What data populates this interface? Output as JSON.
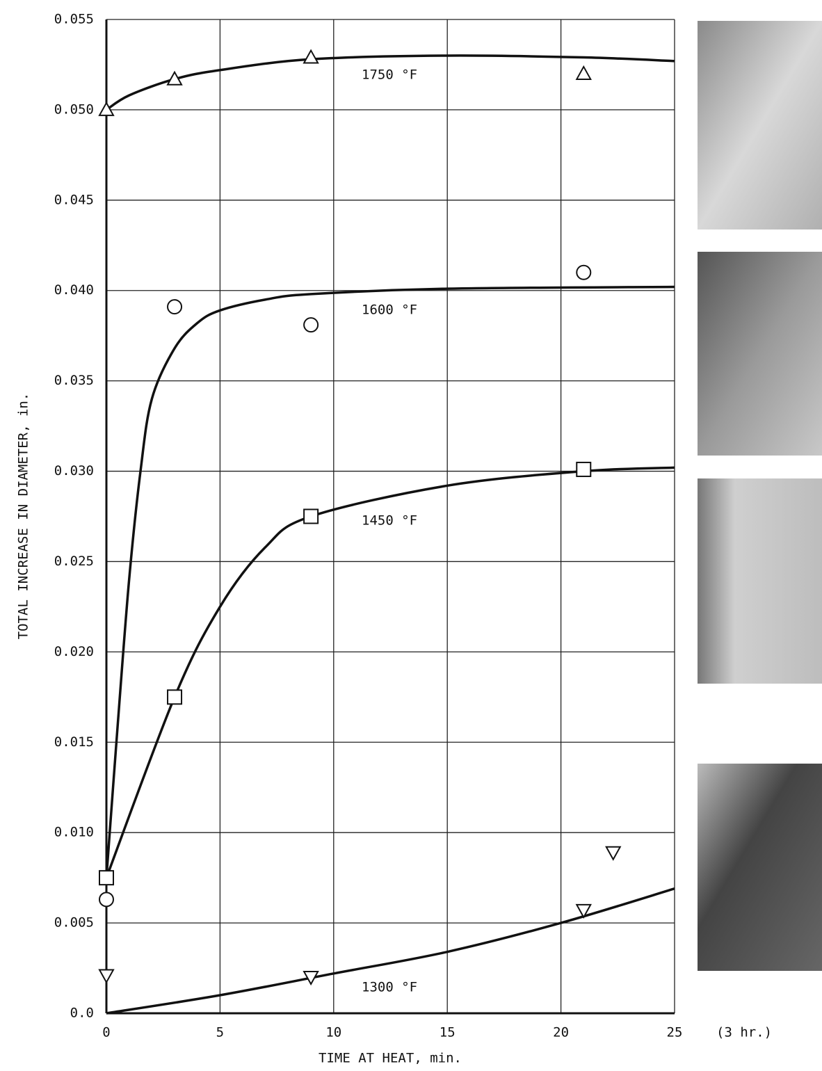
{
  "chart_data": {
    "type": "scatter",
    "x_label": "TIME AT HEAT, min.",
    "y_label": "TOTAL INCREASE IN DIAMETER, in.",
    "annotation": "(3 hr.)",
    "xlim": [
      0,
      25
    ],
    "xticks": [
      0,
      5,
      10,
      15,
      20,
      25
    ],
    "ylim": [
      0,
      0.055
    ],
    "yticks": [
      {
        "value": 0,
        "label": "0.0"
      },
      0.005,
      {
        "value": 0.01,
        "label": "0.010"
      },
      0.015,
      {
        "value": 0.02,
        "label": "0.020"
      },
      0.025,
      {
        "value": 0.03,
        "label": "0.030"
      },
      0.035,
      {
        "value": 0.04,
        "label": "0.040"
      },
      0.045,
      {
        "value": 0.05,
        "label": "0.050"
      },
      0.055
    ],
    "grid": true,
    "color": "#111111",
    "series": [
      {
        "name": "1750 °F",
        "marker": "triangle-up",
        "x": [
          0,
          3,
          9,
          21
        ],
        "values": [
          0.05,
          0.0517,
          0.0529,
          0.052
        ],
        "curve_x": [
          0,
          1,
          3,
          5,
          9,
          15,
          21,
          25
        ],
        "curve_values": [
          0.05,
          0.0508,
          0.0517,
          0.0522,
          0.0528,
          0.053,
          0.0529,
          0.0527
        ]
      },
      {
        "name": "1600 °F",
        "marker": "circle",
        "x": [
          0,
          3,
          9,
          21
        ],
        "values": [
          0.0063,
          0.0391,
          0.0381,
          0.041
        ],
        "curve_x": [
          0,
          0.5,
          1,
          1.5,
          2,
          3,
          4,
          5,
          7,
          9,
          15,
          25
        ],
        "curve_values": [
          0.0075,
          0.016,
          0.024,
          0.03,
          0.034,
          0.0368,
          0.0382,
          0.0389,
          0.0395,
          0.0398,
          0.0401,
          0.0402
        ]
      },
      {
        "name": "1450 °F",
        "marker": "square",
        "x": [
          0,
          3,
          9,
          21
        ],
        "values": [
          0.0075,
          0.0175,
          0.0275,
          0.0301
        ],
        "curve_x": [
          0,
          3,
          5,
          7,
          9,
          15,
          21,
          25
        ],
        "curve_values": [
          0.0075,
          0.0175,
          0.0225,
          0.0258,
          0.0275,
          0.0292,
          0.03,
          0.0302
        ]
      },
      {
        "name": "1300 °F",
        "marker": "triangle-down",
        "x": [
          0,
          9,
          21,
          22.3
        ],
        "values": [
          0.0021,
          0.002,
          0.0057,
          0.0089
        ],
        "curve_x": [
          0,
          5,
          10,
          15,
          20,
          25
        ],
        "curve_values": [
          0,
          0.001,
          0.0022,
          0.0034,
          0.005,
          0.0069
        ]
      }
    ]
  }
}
